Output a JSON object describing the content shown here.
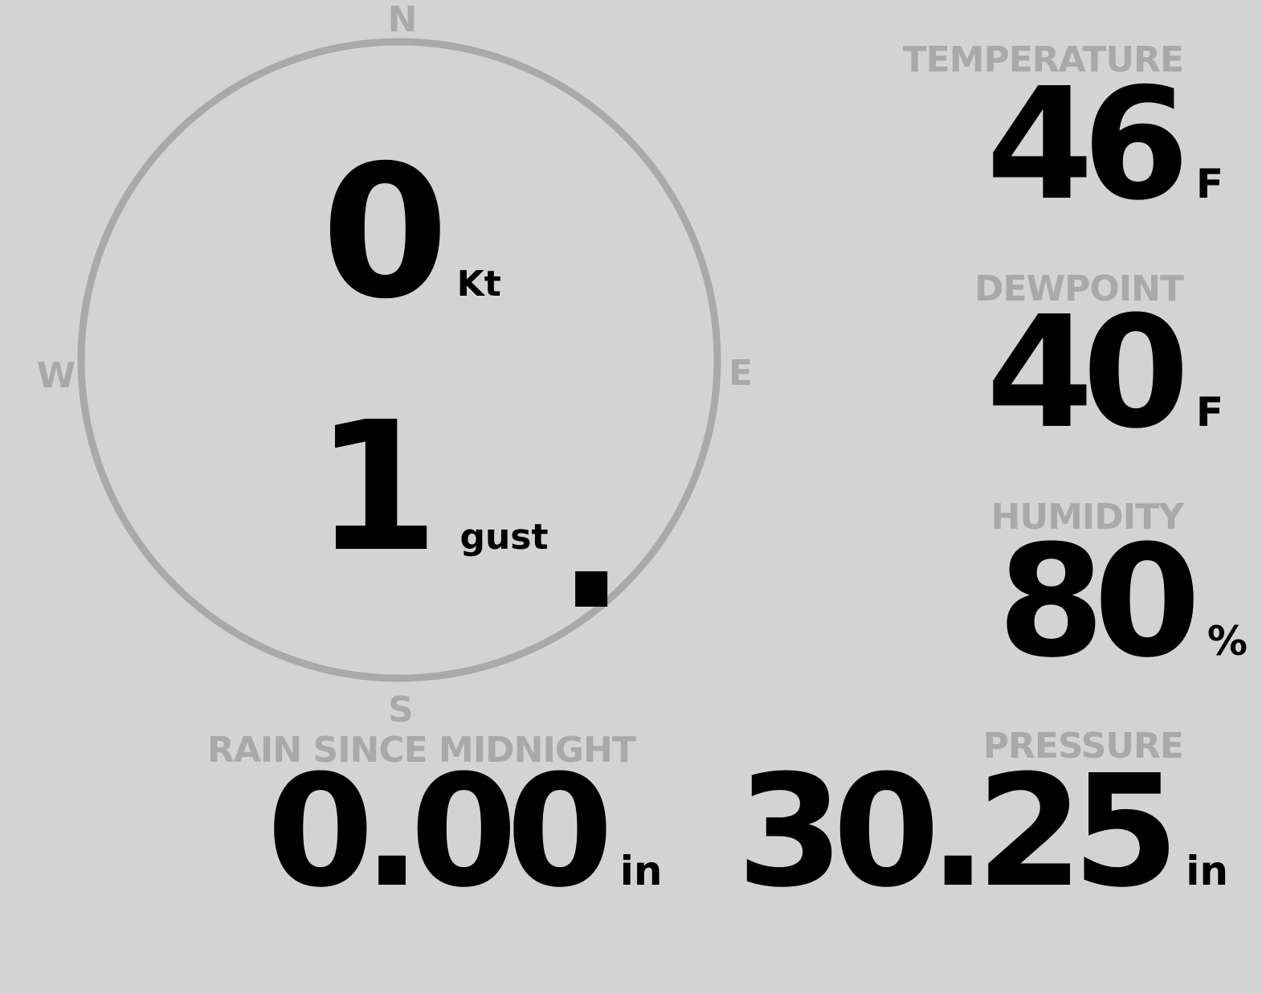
{
  "colors": {
    "background": "#d3d3d3",
    "label": "#a9a9a9",
    "value": "#000000"
  },
  "wind": {
    "speed": "0",
    "speed_unit": "Kt",
    "gust": "1",
    "gust_unit": "gust",
    "direction_degrees": 140,
    "compass": {
      "n": "N",
      "e": "E",
      "s": "S",
      "w": "W"
    }
  },
  "temperature": {
    "label": "TEMPERATURE",
    "value": "46",
    "unit": "F"
  },
  "dewpoint": {
    "label": "DEWPOINT",
    "value": "40",
    "unit": "F"
  },
  "humidity": {
    "label": "HUMIDITY",
    "value": "80",
    "unit": "%"
  },
  "rain": {
    "label": "RAIN SINCE MIDNIGHT",
    "value": "0.00",
    "unit": "in"
  },
  "pressure": {
    "label": "PRESSURE",
    "value": "30.25",
    "unit": "in"
  }
}
